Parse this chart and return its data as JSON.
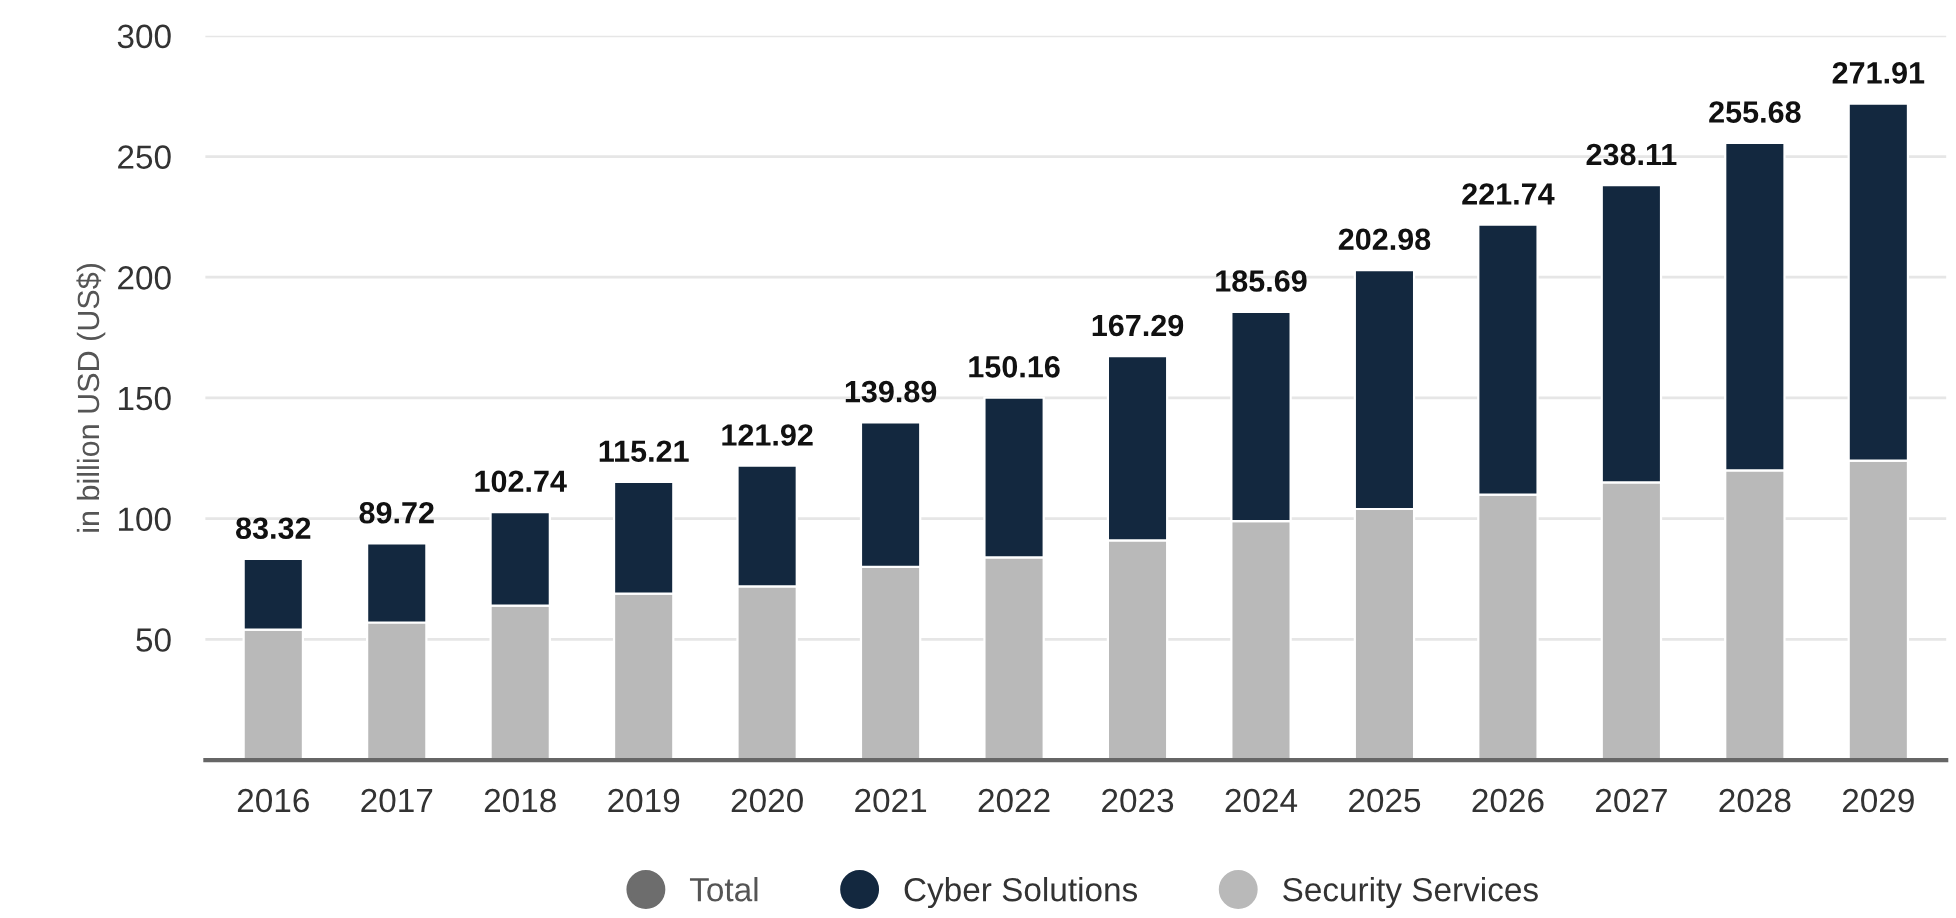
{
  "chart_data": {
    "type": "bar",
    "stacked": true,
    "ylabel": "in billion USD (US$)",
    "categories": [
      "2016",
      "2017",
      "2018",
      "2019",
      "2020",
      "2021",
      "2022",
      "2023",
      "2024",
      "2025",
      "2026",
      "2027",
      "2028",
      "2029"
    ],
    "series": [
      {
        "name": "Security Services",
        "color": "#b9b9b9",
        "values": [
          54,
          57,
          64,
          69,
          72,
          80,
          84,
          91,
          99,
          104,
          110,
          115,
          120,
          124
        ]
      },
      {
        "name": "Cyber Solutions",
        "color": "#13283f",
        "values": [
          29.32,
          32.72,
          38.74,
          46.21,
          49.92,
          59.89,
          66.16,
          76.29,
          86.69,
          98.98,
          111.74,
          123.11,
          135.68,
          147.91
        ]
      },
      {
        "name": "Total",
        "color": "#6d6d6d",
        "values": [
          null,
          null,
          null,
          null,
          null,
          null,
          null,
          null,
          null,
          null,
          null,
          null,
          null,
          null
        ]
      }
    ],
    "totals": [
      "83.32",
      "89.72",
      "102.74",
      "115.21",
      "121.92",
      "139.89",
      "150.16",
      "167.29",
      "185.69",
      "202.98",
      "221.74",
      "238.11",
      "255.68",
      "271.91"
    ],
    "ylim": [
      0,
      300
    ],
    "yticks": [
      50,
      100,
      150,
      200,
      250,
      300
    ],
    "grid": "y",
    "legend": "bottom",
    "marker": "circle"
  }
}
